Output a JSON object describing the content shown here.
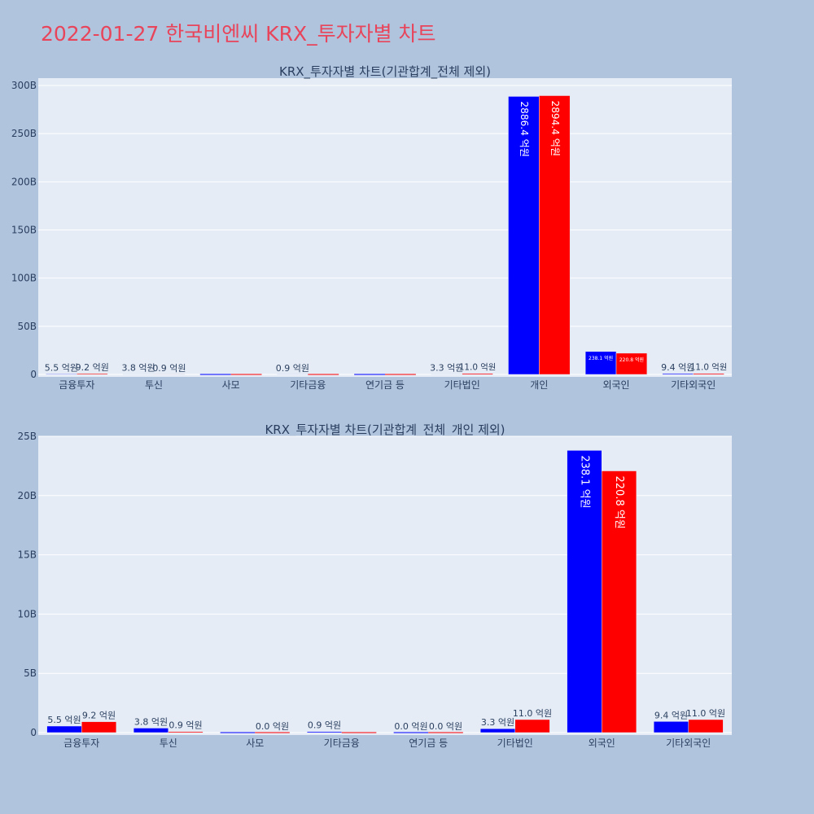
{
  "page": {
    "title": "2022-01-27 한국비엔씨 KRX_투자자별 차트"
  },
  "colors": {
    "buy": "#0000ff",
    "sell": "#ff0000",
    "title": "#e8445a",
    "background": "#b0c4de",
    "plot": "#e5ecf6"
  },
  "chart_data": [
    {
      "type": "bar",
      "title": "KRX_투자자별 차트(기관합계_전체 제외)",
      "categories": [
        "금융투자",
        "투신",
        "사모",
        "기타금융",
        "연기금 등",
        "기타법인",
        "개인",
        "외국인",
        "기타외국인"
      ],
      "ylim": [
        0,
        300
      ],
      "yticks": [
        "0",
        "50B",
        "100B",
        "150B",
        "200B",
        "250B",
        "300B"
      ],
      "grid": true,
      "series": [
        {
          "color": "#0000ff",
          "values": [
            0.55,
            0.38,
            0,
            0.09,
            0,
            0.33,
            288.64,
            23.81,
            0.94
          ],
          "labels": [
            "5.5 억원",
            "3.8 억원",
            "",
            "0.9 억원",
            "",
            "3.3 억원",
            "2886.4 억원",
            "238.1 억원",
            "9.4 억원"
          ]
        },
        {
          "color": "#ff0000",
          "values": [
            0.92,
            0.09,
            0,
            0,
            0,
            1.1,
            289.44,
            22.08,
            1.1
          ],
          "labels": [
            "9.2 억원",
            "0.9 억원",
            "",
            "",
            "",
            "11.0 억원",
            "2894.4 억원",
            "220.8 억원",
            "11.0 억원"
          ]
        }
      ]
    },
    {
      "type": "bar",
      "title": "KRX_투자자별 차트(기관합계_전체_개인 제외)",
      "categories": [
        "금융투자",
        "투신",
        "사모",
        "기타금융",
        "연기금 등",
        "기타법인",
        "외국인",
        "기타외국인"
      ],
      "ylim": [
        0,
        25
      ],
      "yticks": [
        "0",
        "5B",
        "10B",
        "15B",
        "20B",
        "25B"
      ],
      "grid": true,
      "series": [
        {
          "color": "#0000ff",
          "values": [
            0.55,
            0.38,
            0,
            0.09,
            0,
            0.33,
            23.81,
            0.94
          ],
          "labels": [
            "5.5 억원",
            "3.8 억원",
            "",
            "0.9 억원",
            "0.0 억원",
            "3.3 억원",
            "238.1 억원",
            "9.4 억원"
          ]
        },
        {
          "color": "#ff0000",
          "values": [
            0.92,
            0.09,
            0,
            0,
            0,
            1.1,
            22.08,
            1.1
          ],
          "labels": [
            "9.2 억원",
            "0.9 억원",
            "0.0 억원",
            "",
            "0.0 억원",
            "11.0 억원",
            "220.8 억원",
            "11.0 억원"
          ]
        }
      ]
    }
  ]
}
